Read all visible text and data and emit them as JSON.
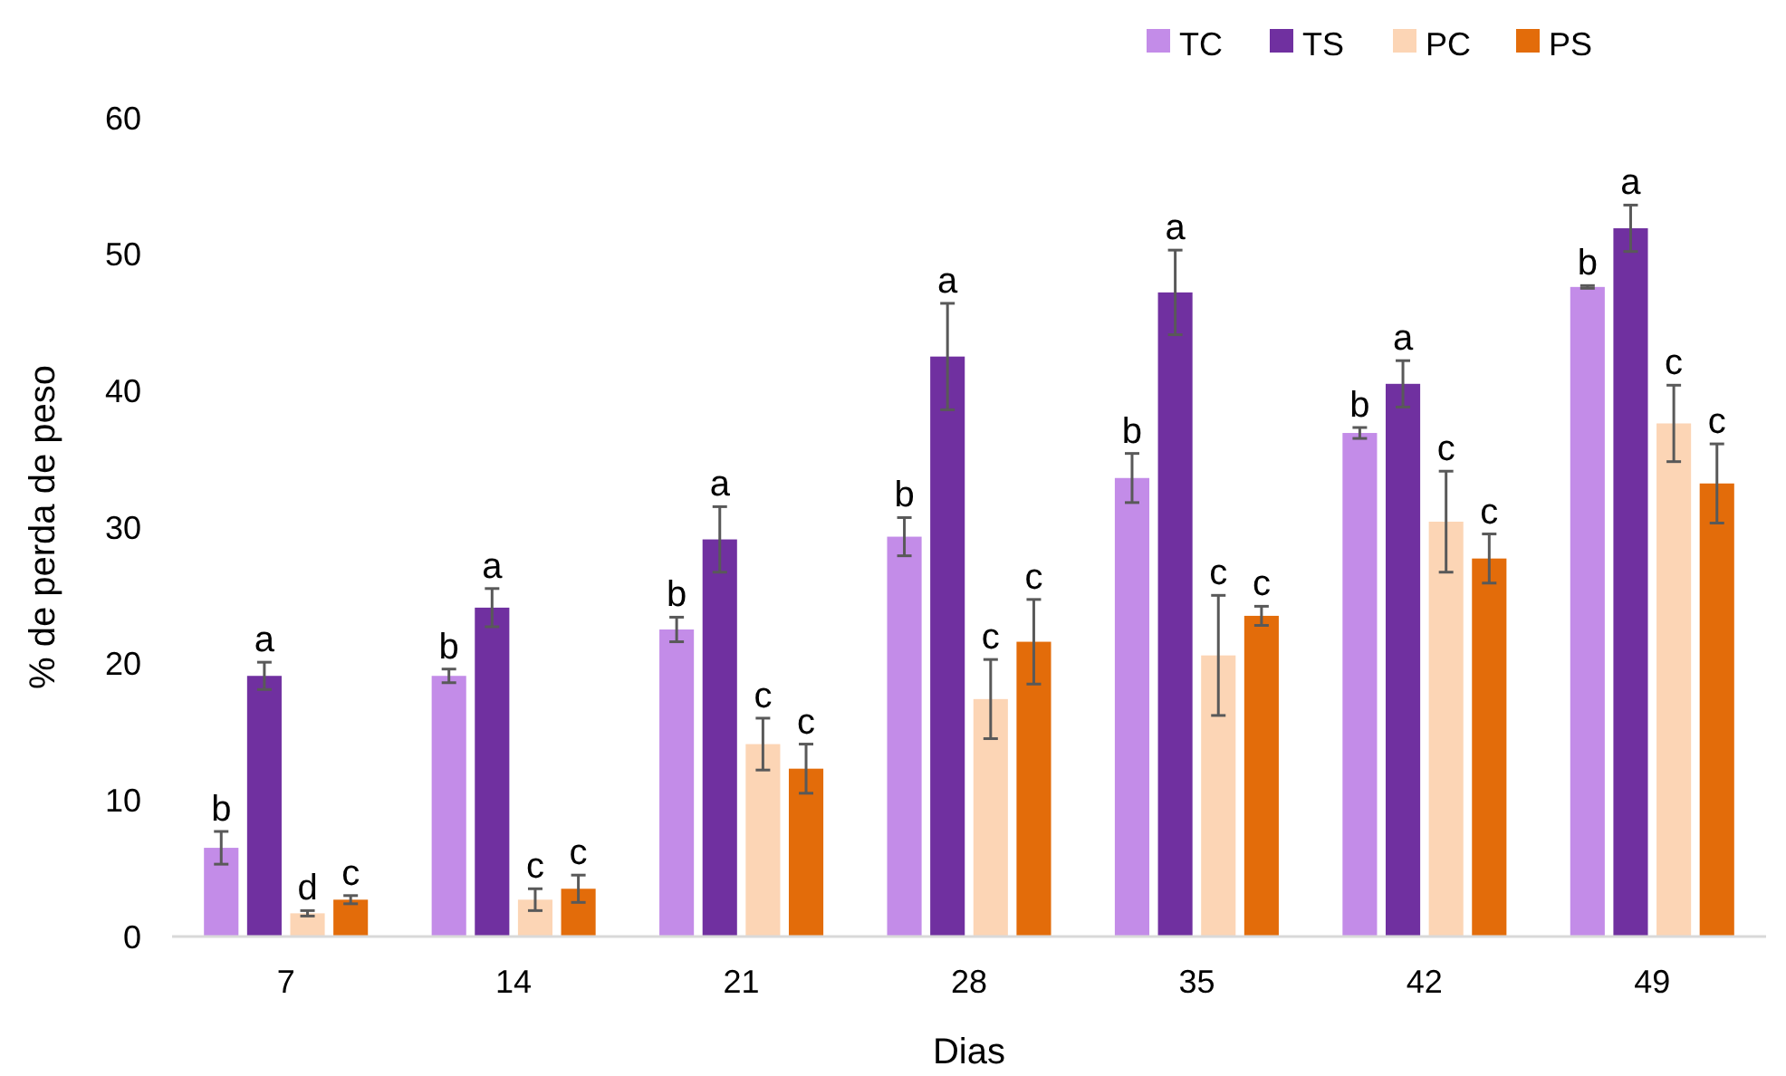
{
  "chart_data": {
    "type": "bar",
    "xlabel": "Dias",
    "ylabel": "% de perda de peso",
    "categories": [
      "7",
      "14",
      "21",
      "28",
      "35",
      "42",
      "49"
    ],
    "ylim": [
      0,
      60
    ],
    "yticks": [
      0,
      10,
      20,
      30,
      40,
      50,
      60
    ],
    "grid": false,
    "legend": "top right",
    "series": [
      {
        "name": "TC",
        "color": "#c38ce8",
        "values": [
          6.5,
          19.1,
          22.5,
          29.3,
          33.6,
          36.9,
          47.6
        ],
        "errors": [
          1.2,
          0.5,
          0.9,
          1.4,
          1.8,
          0.4,
          0.1
        ],
        "value_labels": [
          "b",
          "b",
          "b",
          "b",
          "b",
          "b",
          "b"
        ]
      },
      {
        "name": "TS",
        "color": "#7030a0",
        "values": [
          19.1,
          24.1,
          29.1,
          42.5,
          47.2,
          40.5,
          51.9
        ],
        "errors": [
          1.0,
          1.4,
          2.4,
          3.9,
          3.1,
          1.7,
          1.7
        ],
        "value_labels": [
          "a",
          "a",
          "a",
          "a",
          "a",
          "a",
          "a"
        ]
      },
      {
        "name": "PC",
        "color": "#fcd5b5",
        "values": [
          1.7,
          2.7,
          14.1,
          17.4,
          20.6,
          30.4,
          37.6
        ],
        "errors": [
          0.2,
          0.8,
          1.9,
          2.9,
          4.4,
          3.7,
          2.8
        ],
        "value_labels": [
          "d",
          "c",
          "c",
          "c",
          "c",
          "c",
          "c"
        ]
      },
      {
        "name": "PS",
        "color": "#e36c0a",
        "values": [
          2.7,
          3.5,
          12.3,
          21.6,
          23.5,
          27.7,
          33.2
        ],
        "errors": [
          0.3,
          1.0,
          1.8,
          3.1,
          0.7,
          1.8,
          2.9
        ],
        "value_labels": [
          "c",
          "c",
          "c",
          "c",
          "c",
          "c",
          "c"
        ]
      }
    ]
  }
}
